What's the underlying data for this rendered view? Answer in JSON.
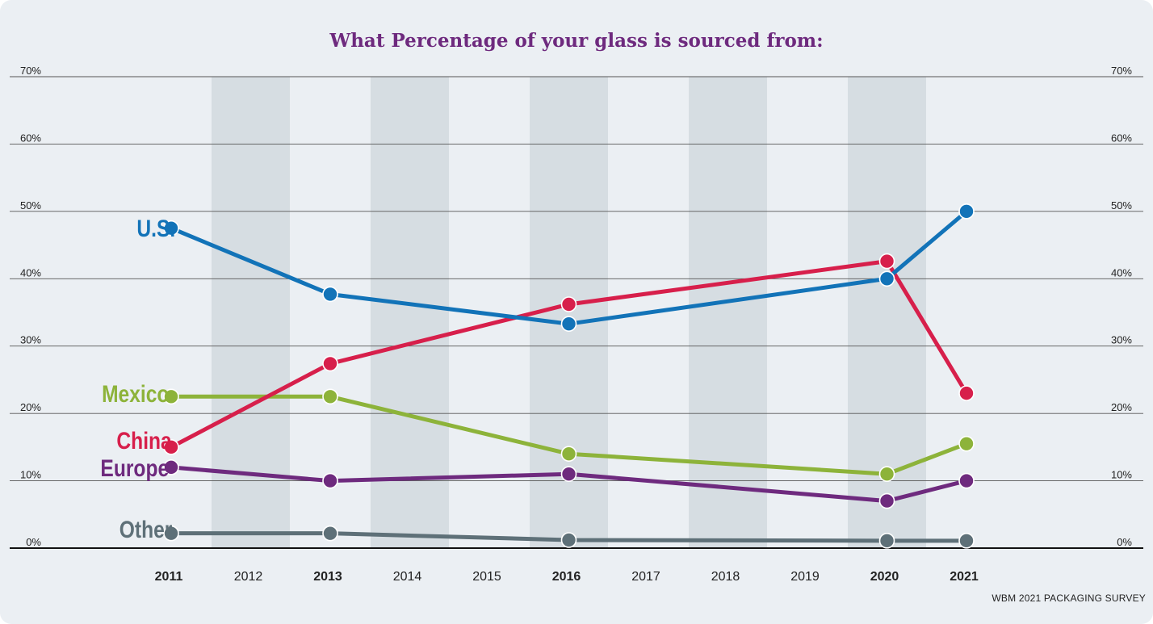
{
  "chart_data": {
    "type": "line",
    "title": "What Percentage of your glass is sourced from:",
    "source": "WBM 2021 PACKAGING SURVEY",
    "x_categories": [
      "2011",
      "2012",
      "2013",
      "2014",
      "2015",
      "2016",
      "2017",
      "2018",
      "2019",
      "2020",
      "2021"
    ],
    "bold_years": [
      "2011",
      "2013",
      "2016",
      "2020",
      "2021"
    ],
    "shaded_years": [
      "2012",
      "2014",
      "2016",
      "2018",
      "2020"
    ],
    "y_ticks": [
      "0%",
      "10%",
      "20%",
      "30%",
      "40%",
      "50%",
      "60%",
      "70%"
    ],
    "ylim": [
      0,
      70
    ],
    "series": [
      {
        "name": "U.S.",
        "color": "#1273b8",
        "points": [
          {
            "x": "2011",
            "y": 47.5
          },
          {
            "x": "2013",
            "y": 37.7
          },
          {
            "x": "2016",
            "y": 33.3
          },
          {
            "x": "2020",
            "y": 40.0
          },
          {
            "x": "2021",
            "y": 50.0
          }
        ]
      },
      {
        "name": "China",
        "color": "#d71f4b",
        "points": [
          {
            "x": "2011",
            "y": 15.0
          },
          {
            "x": "2013",
            "y": 27.4
          },
          {
            "x": "2016",
            "y": 36.2
          },
          {
            "x": "2020",
            "y": 42.6
          },
          {
            "x": "2021",
            "y": 23.0
          }
        ]
      },
      {
        "name": "Mexico",
        "color": "#8db33a",
        "points": [
          {
            "x": "2011",
            "y": 22.5
          },
          {
            "x": "2013",
            "y": 22.5
          },
          {
            "x": "2016",
            "y": 14.0
          },
          {
            "x": "2020",
            "y": 11.0
          },
          {
            "x": "2021",
            "y": 15.5
          }
        ]
      },
      {
        "name": "Europe",
        "color": "#6e2a7e",
        "points": [
          {
            "x": "2011",
            "y": 12.0
          },
          {
            "x": "2013",
            "y": 10.0
          },
          {
            "x": "2016",
            "y": 11.0
          },
          {
            "x": "2020",
            "y": 7.0
          },
          {
            "x": "2021",
            "y": 10.0
          }
        ]
      },
      {
        "name": "Other",
        "color": "#5e7078",
        "points": [
          {
            "x": "2011",
            "y": 2.2
          },
          {
            "x": "2013",
            "y": 2.2
          },
          {
            "x": "2016",
            "y": 1.2
          },
          {
            "x": "2020",
            "y": 1.1
          },
          {
            "x": "2021",
            "y": 1.1
          }
        ]
      }
    ]
  },
  "colors": {
    "title": "#6e2a7e",
    "background": "#ebeff3",
    "shade": "#d6dde2",
    "gridline": "#555555",
    "baseline": "#111111"
  }
}
